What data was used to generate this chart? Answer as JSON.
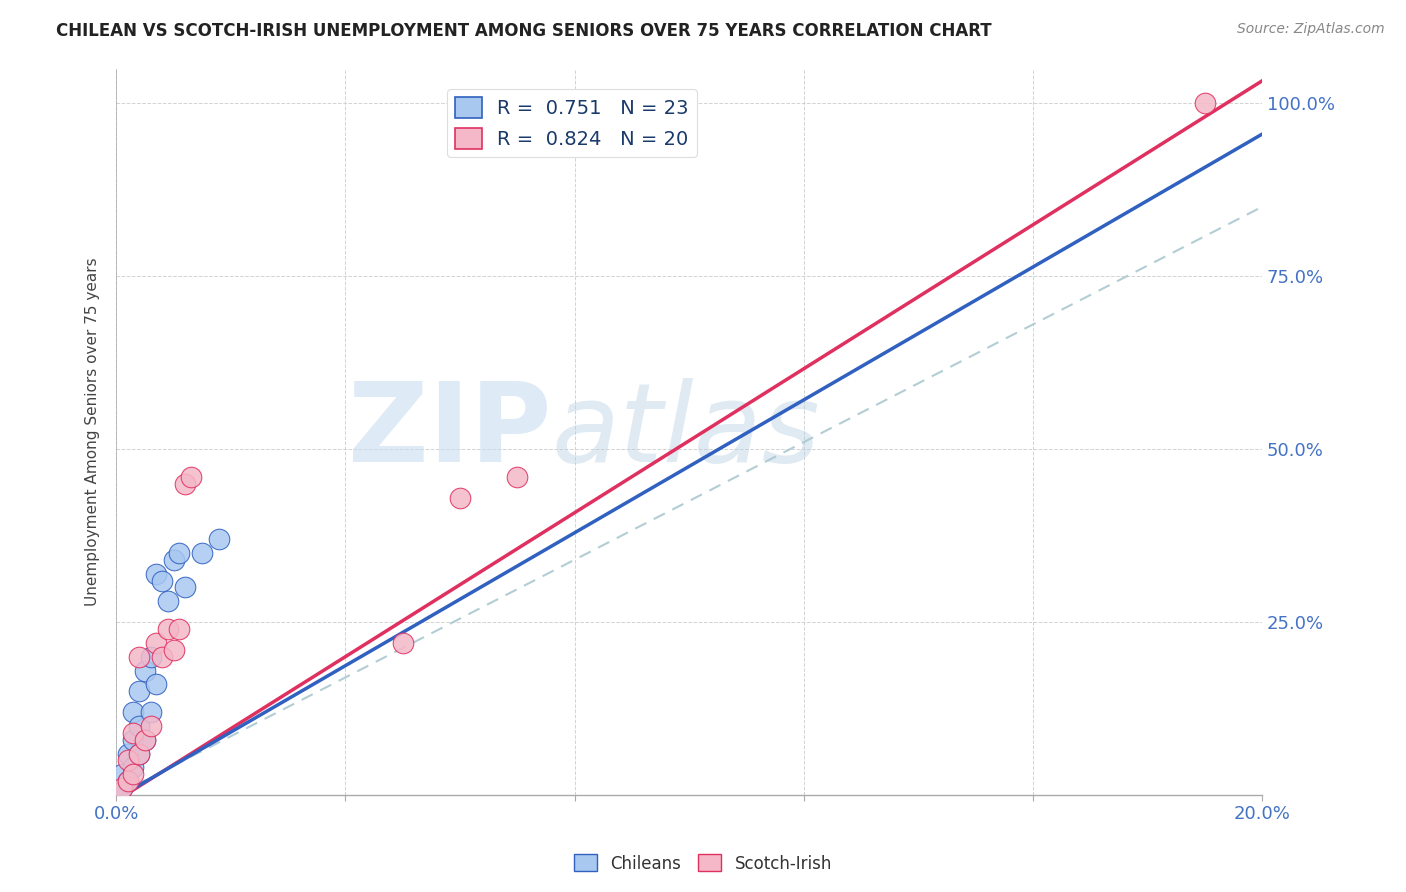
{
  "title": "CHILEAN VS SCOTCH-IRISH UNEMPLOYMENT AMONG SENIORS OVER 75 YEARS CORRELATION CHART",
  "source": "Source: ZipAtlas.com",
  "ylabel": "Unemployment Among Seniors over 75 years",
  "xlim": [
    0.0,
    0.2
  ],
  "ylim": [
    0.0,
    1.05
  ],
  "ytick_vals": [
    0.0,
    0.25,
    0.5,
    0.75,
    1.0
  ],
  "ytick_labels_right": [
    "",
    "25.0%",
    "50.0%",
    "75.0%",
    "100.0%"
  ],
  "xtick_vals": [
    0.0,
    0.04,
    0.08,
    0.12,
    0.16,
    0.2
  ],
  "xtick_labels": [
    "0.0%",
    "",
    "",
    "",
    "",
    "20.0%"
  ],
  "chilean_R": 0.751,
  "chilean_N": 23,
  "scotch_R": 0.824,
  "scotch_N": 20,
  "chilean_color": "#a8c8f0",
  "scotch_color": "#f4b8c8",
  "line_chilean_color": "#3060c0",
  "line_scotch_color": "#e03060",
  "diagonal_color": "#aac8d0",
  "chilean_line_slope": 4.8,
  "chilean_line_intercept": -0.005,
  "scotch_line_slope": 5.2,
  "scotch_line_intercept": -0.008,
  "chilean_scatter_x": [
    0.001,
    0.002,
    0.003,
    0.003,
    0.004,
    0.004,
    0.005,
    0.005,
    0.006,
    0.006,
    0.007,
    0.007,
    0.008,
    0.008,
    0.009,
    0.009,
    0.01,
    0.011,
    0.012,
    0.013,
    0.015,
    0.017,
    0.02
  ],
  "chilean_scatter_y": [
    0.01,
    0.02,
    0.03,
    0.05,
    0.02,
    0.08,
    0.04,
    0.1,
    0.06,
    0.12,
    0.06,
    0.15,
    0.1,
    0.2,
    0.14,
    0.22,
    0.24,
    0.29,
    0.31,
    0.33,
    0.34,
    0.36,
    0.35
  ],
  "scotch_scatter_x": [
    0.001,
    0.002,
    0.003,
    0.003,
    0.004,
    0.004,
    0.005,
    0.006,
    0.007,
    0.007,
    0.008,
    0.009,
    0.01,
    0.011,
    0.012,
    0.013,
    0.015,
    0.05,
    0.06,
    0.19
  ],
  "scotch_scatter_y": [
    0.01,
    0.02,
    0.03,
    0.05,
    0.06,
    0.1,
    0.02,
    0.08,
    0.1,
    0.22,
    0.21,
    0.24,
    0.22,
    0.24,
    0.44,
    0.46,
    0.22,
    0.22,
    0.44,
    1.0
  ],
  "watermark_zip": "ZIP",
  "watermark_atlas": "atlas",
  "background_color": "#ffffff"
}
